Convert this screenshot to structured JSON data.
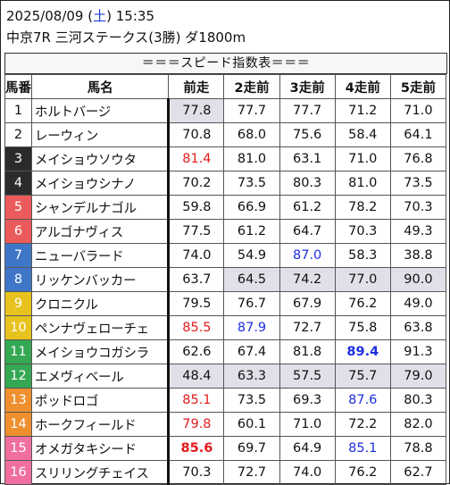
{
  "header": {
    "date": "2025/08/09",
    "weekday_open": "(",
    "weekday": "土",
    "weekday_close": ")",
    "time": "15:35",
    "race_line": "中京7R 三河ステークス(3勝) ダ1800m",
    "banner": "＝＝＝スピード指数表＝＝＝"
  },
  "table": {
    "columns": [
      "馬番",
      "馬名",
      "前走",
      "2走前",
      "3走前",
      "4走前",
      "5走前"
    ],
    "rows": [
      {
        "no": "1",
        "no_bg": "#ffffff",
        "no_fg": "#111111",
        "name": "ホルトバージ",
        "vals": [
          "77.8",
          "77.7",
          "77.7",
          "71.2",
          "71.0"
        ],
        "styles": [
          "",
          "",
          "",
          "",
          ""
        ],
        "gray": [
          true,
          false,
          false,
          false,
          false
        ]
      },
      {
        "no": "2",
        "no_bg": "#ffffff",
        "no_fg": "#111111",
        "name": "レーウィン",
        "vals": [
          "70.8",
          "68.0",
          "75.6",
          "58.4",
          "64.1"
        ],
        "styles": [
          "",
          "",
          "",
          "",
          ""
        ],
        "gray": [
          false,
          false,
          false,
          false,
          false
        ]
      },
      {
        "no": "3",
        "no_bg": "#2b2b2b",
        "no_fg": "#ffffff",
        "name": "メイショウソウタ",
        "vals": [
          "81.4",
          "81.0",
          "63.1",
          "71.0",
          "76.8"
        ],
        "styles": [
          "red",
          "",
          "",
          "",
          ""
        ],
        "gray": [
          false,
          false,
          false,
          false,
          false
        ]
      },
      {
        "no": "4",
        "no_bg": "#2b2b2b",
        "no_fg": "#ffffff",
        "name": "メイショウシナノ",
        "vals": [
          "70.2",
          "73.5",
          "80.3",
          "81.0",
          "73.5"
        ],
        "styles": [
          "",
          "",
          "",
          "",
          ""
        ],
        "gray": [
          false,
          false,
          false,
          false,
          false
        ]
      },
      {
        "no": "5",
        "no_bg": "#ec5b5b",
        "no_fg": "#ffffff",
        "name": "シャンデルナゴル",
        "vals": [
          "59.8",
          "66.9",
          "61.2",
          "78.2",
          "70.3"
        ],
        "styles": [
          "",
          "",
          "",
          "",
          ""
        ],
        "gray": [
          false,
          false,
          false,
          false,
          false
        ]
      },
      {
        "no": "6",
        "no_bg": "#ec5b5b",
        "no_fg": "#ffffff",
        "name": "アルゴナヴィス",
        "vals": [
          "77.5",
          "61.2",
          "64.7",
          "70.3",
          "49.3"
        ],
        "styles": [
          "",
          "",
          "",
          "",
          ""
        ],
        "gray": [
          false,
          false,
          false,
          false,
          false
        ]
      },
      {
        "no": "7",
        "no_bg": "#3f76c8",
        "no_fg": "#ffffff",
        "name": "ニューバラード",
        "vals": [
          "74.0",
          "54.9",
          "87.0",
          "58.3",
          "38.8"
        ],
        "styles": [
          "",
          "",
          "blue",
          "",
          ""
        ],
        "gray": [
          false,
          false,
          false,
          false,
          false
        ]
      },
      {
        "no": "8",
        "no_bg": "#3f76c8",
        "no_fg": "#ffffff",
        "name": "リッケンバッカー",
        "vals": [
          "63.7",
          "64.5",
          "74.2",
          "77.0",
          "90.0"
        ],
        "styles": [
          "",
          "",
          "",
          "",
          ""
        ],
        "gray": [
          false,
          true,
          true,
          true,
          true
        ]
      },
      {
        "no": "9",
        "no_bg": "#e8c21e",
        "no_fg": "#ffffff",
        "name": "クロニクル",
        "vals": [
          "79.5",
          "76.7",
          "67.9",
          "76.2",
          "49.0"
        ],
        "styles": [
          "",
          "",
          "",
          "",
          ""
        ],
        "gray": [
          false,
          false,
          false,
          false,
          false
        ]
      },
      {
        "no": "10",
        "no_bg": "#e8c21e",
        "no_fg": "#ffffff",
        "name": "ペンナヴェローチェ",
        "vals": [
          "85.5",
          "87.9",
          "72.7",
          "75.8",
          "63.8"
        ],
        "styles": [
          "red",
          "blue",
          "",
          "",
          ""
        ],
        "gray": [
          false,
          false,
          false,
          false,
          false
        ]
      },
      {
        "no": "11",
        "no_bg": "#34a853",
        "no_fg": "#ffffff",
        "name": "メイショウコガシラ",
        "vals": [
          "62.6",
          "67.4",
          "81.8",
          "89.4",
          "91.3"
        ],
        "styles": [
          "",
          "",
          "",
          "bluebold",
          ""
        ],
        "gray": [
          false,
          false,
          false,
          false,
          false
        ]
      },
      {
        "no": "12",
        "no_bg": "#34a853",
        "no_fg": "#ffffff",
        "name": "エメヴィベール",
        "vals": [
          "48.4",
          "63.3",
          "57.5",
          "75.7",
          "79.0"
        ],
        "styles": [
          "",
          "",
          "",
          "",
          ""
        ],
        "gray": [
          true,
          true,
          true,
          true,
          true
        ]
      },
      {
        "no": "13",
        "no_bg": "#ef8f2e",
        "no_fg": "#ffffff",
        "name": "ポッドロゴ",
        "vals": [
          "85.1",
          "73.5",
          "69.3",
          "87.6",
          "80.3"
        ],
        "styles": [
          "red",
          "",
          "",
          "blue",
          ""
        ],
        "gray": [
          false,
          false,
          false,
          false,
          false
        ]
      },
      {
        "no": "14",
        "no_bg": "#ef8f2e",
        "no_fg": "#ffffff",
        "name": "ホークフィールド",
        "vals": [
          "79.8",
          "60.1",
          "71.0",
          "72.2",
          "82.0"
        ],
        "styles": [
          "red",
          "",
          "",
          "",
          ""
        ],
        "gray": [
          false,
          false,
          false,
          false,
          false
        ]
      },
      {
        "no": "15",
        "no_bg": "#f06fa0",
        "no_fg": "#ffffff",
        "name": "オメガタキシード",
        "vals": [
          "85.6",
          "69.7",
          "64.9",
          "85.1",
          "78.8"
        ],
        "styles": [
          "redbold",
          "",
          "",
          "blue",
          ""
        ],
        "gray": [
          false,
          false,
          false,
          false,
          false
        ]
      },
      {
        "no": "16",
        "no_bg": "#f06fa0",
        "no_fg": "#ffffff",
        "name": "スリリングチェイス",
        "vals": [
          "70.3",
          "72.7",
          "74.0",
          "76.2",
          "62.7"
        ],
        "styles": [
          "",
          "",
          "",
          "",
          ""
        ],
        "gray": [
          false,
          false,
          false,
          false,
          false
        ]
      }
    ]
  }
}
